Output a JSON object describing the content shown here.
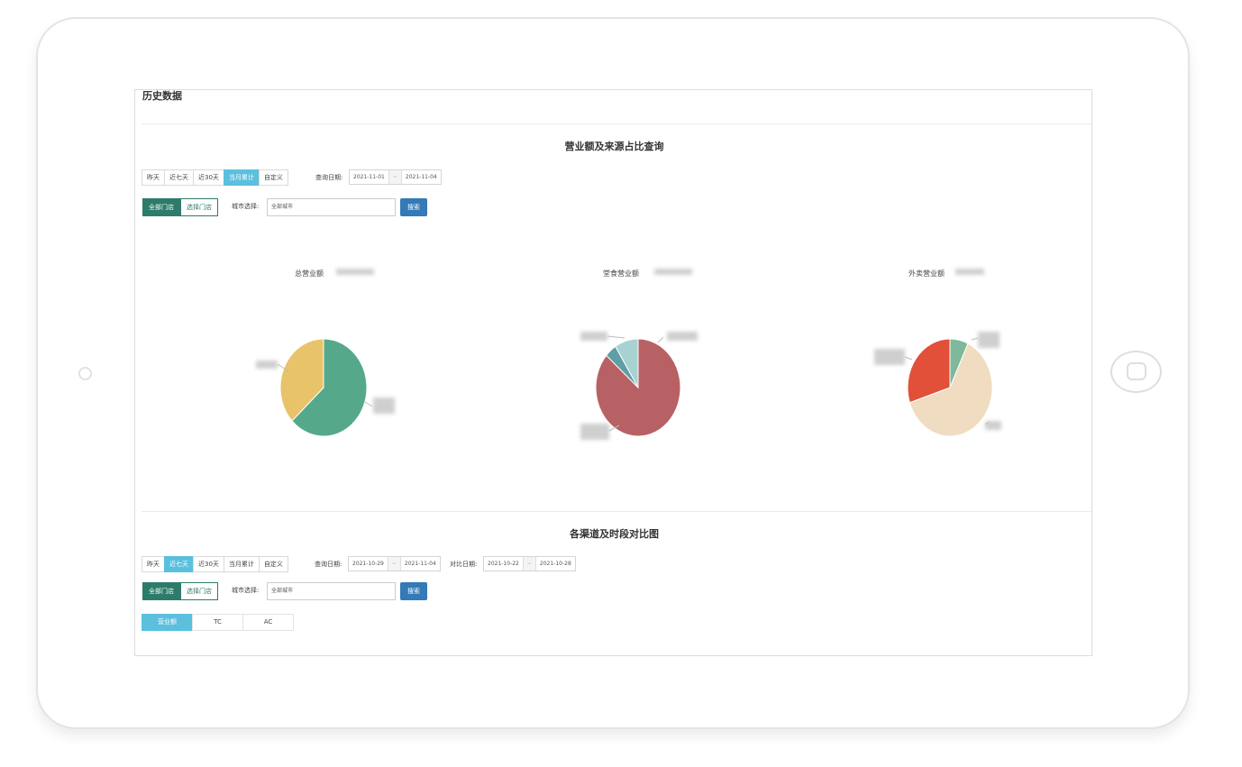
{
  "page": {
    "history_title": "历史数据"
  },
  "section1": {
    "title": "营业额及来源占比查询",
    "tabs": [
      "昨天",
      "近七天",
      "近30天",
      "当月累计",
      "自定义"
    ],
    "active_tab": 3,
    "query_label": "查询日期:",
    "date_start": "2021-11-01",
    "date_sep": "~",
    "date_end": "2021-11-04",
    "store_options": [
      "全部门店",
      "选择门店"
    ],
    "active_store": 0,
    "city_label": "城市选择:",
    "city_value": "全部城市",
    "search_label": "搜索"
  },
  "charts": [
    {
      "title": "总营业额",
      "slices": [
        {
          "color": "#55a98a",
          "fraction": 0.63
        },
        {
          "color": "#e8c36a",
          "fraction": 0.37
        }
      ]
    },
    {
      "title": "堂食营业额",
      "slices": [
        {
          "color": "#b86164",
          "fraction": 0.865
        },
        {
          "color": "#5f9ea5",
          "fraction": 0.045
        },
        {
          "color": "#a7d2d2",
          "fraction": 0.09
        }
      ]
    },
    {
      "title": "外卖营业额",
      "slices": [
        {
          "color": "#7fb89a",
          "fraction": 0.07
        },
        {
          "color": "#f0dcc0",
          "fraction": 0.63
        },
        {
          "color": "#e2503a",
          "fraction": 0.3
        }
      ]
    }
  ],
  "section2": {
    "title": "各渠道及时段对比图",
    "tabs": [
      "昨天",
      "近七天",
      "近30天",
      "当月累计",
      "自定义"
    ],
    "active_tab": 1,
    "query_label": "查询日期:",
    "date_start": "2021-10-29",
    "date_sep": "~",
    "date_end": "2021-11-04",
    "compare_label": "对比日期:",
    "compare_start": "2021-10-22",
    "compare_sep": "~",
    "compare_end": "2021-10-28",
    "store_options": [
      "全部门店",
      "选择门店"
    ],
    "active_store": 0,
    "city_label": "城市选择:",
    "city_value": "全部城市",
    "search_label": "搜索",
    "metrics": [
      "营业额",
      "TC",
      "AC"
    ],
    "active_metric": 0
  }
}
